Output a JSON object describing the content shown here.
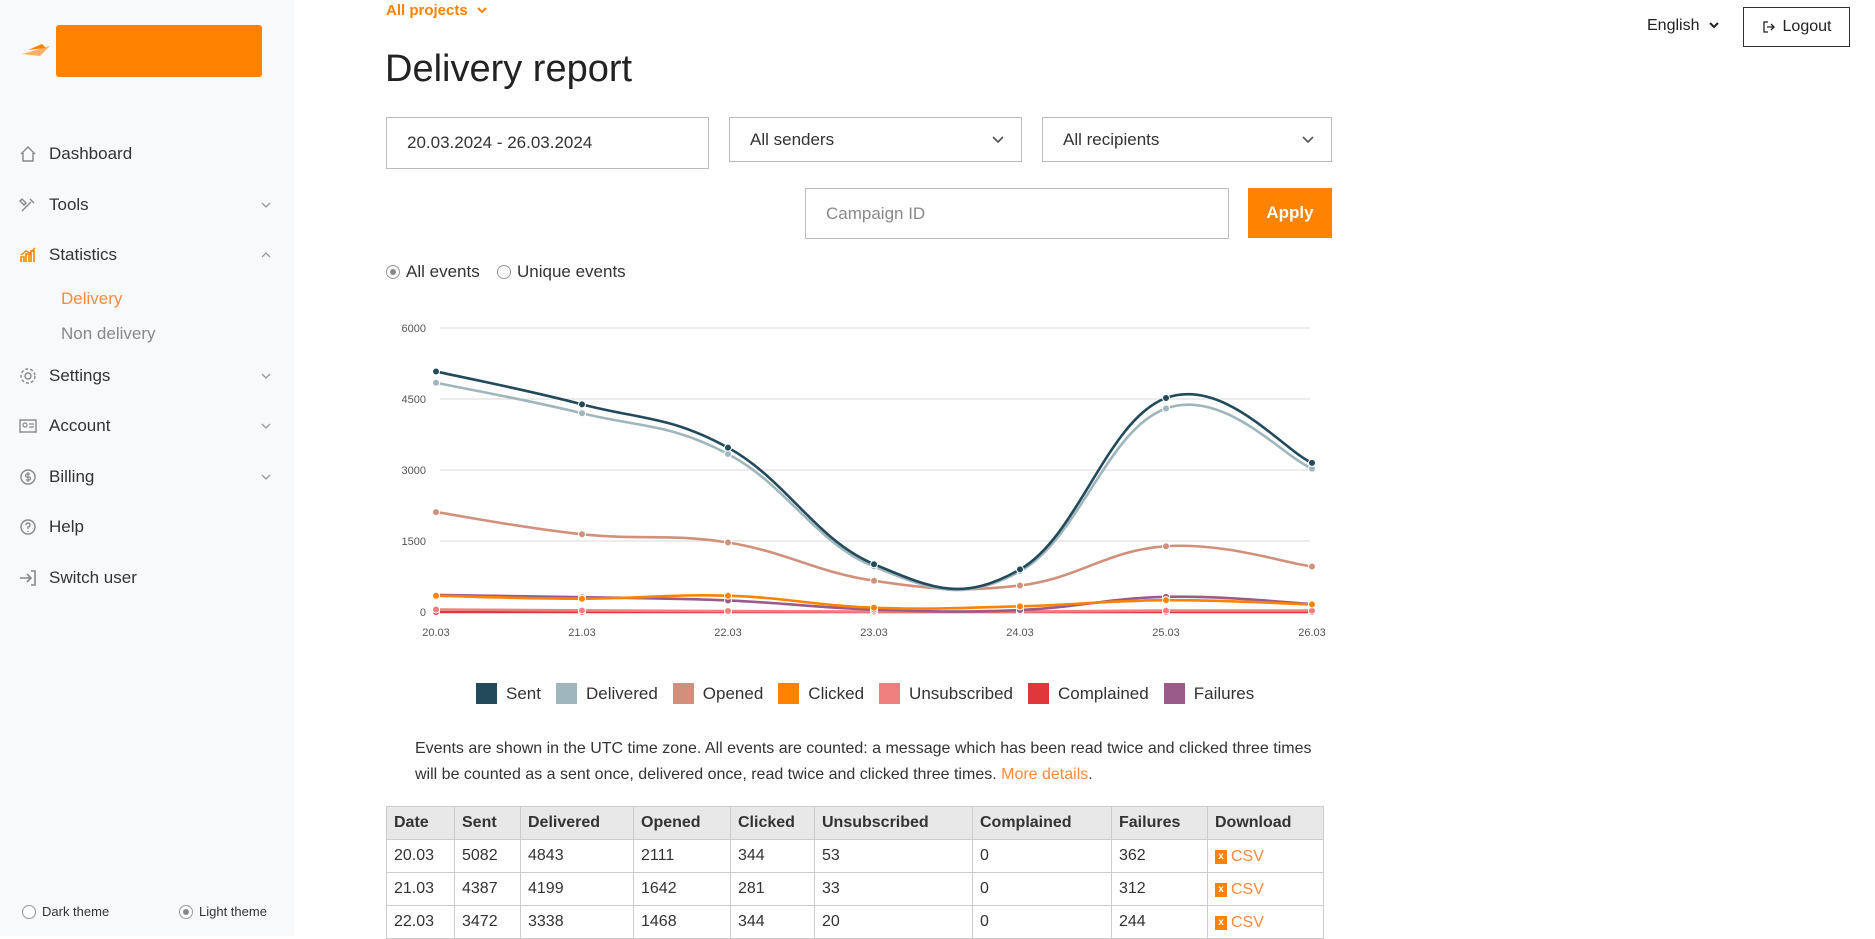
{
  "sidebar": {
    "items": [
      {
        "key": "dashboard",
        "label": "Dashboard",
        "icon": "home-icon"
      },
      {
        "key": "tools",
        "label": "Tools",
        "icon": "tools-icon",
        "has_chevron": true
      },
      {
        "key": "statistics",
        "label": "Statistics",
        "icon": "statistics-icon",
        "expanded": true,
        "children": [
          {
            "label": "Delivery",
            "active": true
          },
          {
            "label": "Non delivery"
          }
        ]
      },
      {
        "key": "settings",
        "label": "Settings",
        "icon": "gear-icon",
        "has_chevron": true
      },
      {
        "key": "account",
        "label": "Account",
        "icon": "id-card-icon",
        "has_chevron": true
      },
      {
        "key": "billing",
        "label": "Billing",
        "icon": "coin-icon",
        "has_chevron": true
      },
      {
        "key": "help",
        "label": "Help",
        "icon": "help-icon"
      },
      {
        "key": "switch_user",
        "label": "Switch user",
        "icon": "sign-in-icon"
      }
    ],
    "theme": {
      "dark_label": "Dark theme",
      "light_label": "Light theme",
      "selected": "light"
    }
  },
  "header": {
    "projects_label": "All projects",
    "title": "Delivery report",
    "language": "English",
    "logout_label": "Logout"
  },
  "filters": {
    "date_range": "20.03.2024 - 26.03.2024",
    "senders": "All senders",
    "recipients": "All recipients",
    "campaign_placeholder": "Campaign ID",
    "apply_label": "Apply",
    "all_events_label": "All events",
    "unique_events_label": "Unique events",
    "selected_event_mode": "all"
  },
  "chart_data": {
    "type": "line",
    "x": [
      "20.03",
      "21.03",
      "22.03",
      "23.03",
      "24.03",
      "25.03",
      "26.03"
    ],
    "ylim": [
      0,
      6000
    ],
    "yticks": [
      0,
      1500,
      3000,
      4500,
      6000
    ],
    "grid": true,
    "legend": "bottom",
    "series": [
      {
        "name": "Sent",
        "color": "#234a5a",
        "values": [
          5082,
          4387,
          3472,
          1010,
          900,
          4520,
          3150
        ]
      },
      {
        "name": "Delivered",
        "color": "#9fb7bc",
        "values": [
          4843,
          4199,
          3338,
          960,
          860,
          4300,
          3030
        ]
      },
      {
        "name": "Opened",
        "color": "#d2907c",
        "values": [
          2111,
          1642,
          1468,
          660,
          560,
          1390,
          960
        ]
      },
      {
        "name": "Clicked",
        "color": "#ff8200",
        "values": [
          344,
          281,
          344,
          90,
          120,
          250,
          160
        ]
      },
      {
        "name": "Unsubscribed",
        "color": "#f08080",
        "values": [
          53,
          33,
          20,
          10,
          10,
          30,
          30
        ]
      },
      {
        "name": "Complained",
        "color": "#e0373b",
        "values": [
          0,
          0,
          0,
          0,
          0,
          0,
          0
        ]
      },
      {
        "name": "Failures",
        "color": "#9b5b8a",
        "values": [
          362,
          312,
          244,
          50,
          40,
          320,
          170
        ]
      }
    ]
  },
  "note": {
    "text": "Events are shown in the UTC time zone. All events are counted: a message which has been read twice and clicked three times will be counted as a sent once, delivered once, read twice and clicked three times.",
    "link": "More details",
    "after": "."
  },
  "table": {
    "headers": [
      "Date",
      "Sent",
      "Delivered",
      "Opened",
      "Clicked",
      "Unsubscribed",
      "Complained",
      "Failures",
      "Download"
    ],
    "rows": [
      [
        "20.03",
        "5082",
        "4843",
        "2111",
        "344",
        "53",
        "0",
        "362"
      ],
      [
        "21.03",
        "4387",
        "4199",
        "1642",
        "281",
        "33",
        "0",
        "312"
      ],
      [
        "22.03",
        "3472",
        "3338",
        "1468",
        "344",
        "20",
        "0",
        "244"
      ]
    ],
    "download_label": "CSV"
  }
}
